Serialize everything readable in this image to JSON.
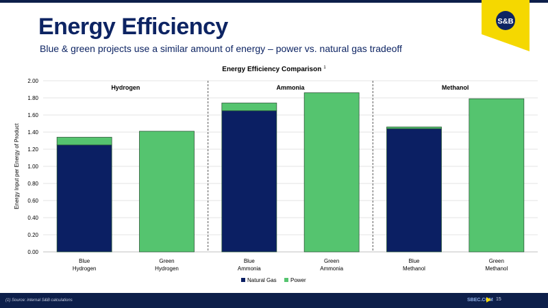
{
  "header": {
    "title": "Energy Efficiency",
    "subtitle": "Blue & green projects use a similar amount of energy – power vs. natural gas tradeoff"
  },
  "logo": {
    "text": "S&B"
  },
  "footer": {
    "source": "(1) Source: internal S&B calculations",
    "site": "SBEC.COM",
    "page": "15"
  },
  "colors": {
    "navy": "#0d2463",
    "natural_gas": "#0b1f63",
    "power": "#55c46f",
    "yellow": "#f5d800"
  },
  "chart_data": {
    "type": "bar",
    "stacked": true,
    "title": "Energy Efficiency Comparison",
    "title_superscript": "1",
    "ylabel": "Energy Input per Energy of Product",
    "xlabel": "",
    "ylim": [
      0,
      2.0
    ],
    "yticks": [
      "0.00",
      "0.20",
      "0.40",
      "0.60",
      "0.80",
      "1.00",
      "1.20",
      "1.40",
      "1.60",
      "1.80",
      "2.00"
    ],
    "groups": [
      "Hydrogen",
      "Ammonia",
      "Methanol"
    ],
    "categories": [
      [
        "Blue",
        "Hydrogen"
      ],
      [
        "Green",
        "Hydrogen"
      ],
      [
        "Blue",
        "Ammonia"
      ],
      [
        "Green",
        "Ammonia"
      ],
      [
        "Blue",
        "Methanol"
      ],
      [
        "Green",
        "Methanol"
      ]
    ],
    "series": [
      {
        "name": "Natural Gas",
        "values": [
          1.25,
          0,
          1.65,
          0,
          1.44,
          0
        ]
      },
      {
        "name": "Power",
        "values": [
          0.09,
          1.41,
          0.09,
          1.86,
          0.02,
          1.79
        ]
      }
    ],
    "legend": "bottom",
    "grid": true
  }
}
